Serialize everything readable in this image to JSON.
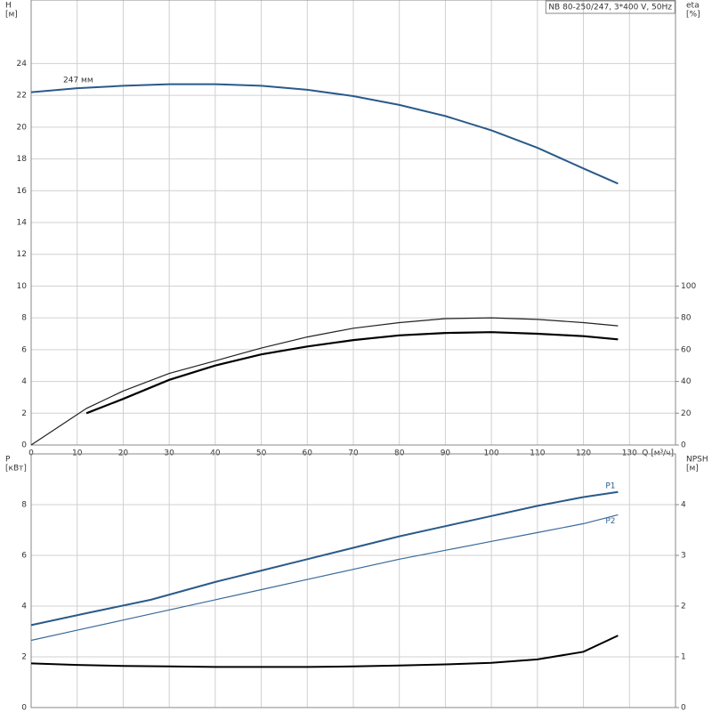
{
  "chart_data": [
    {
      "type": "line",
      "title": "NB 80-250/247, 3*400 V, 50Hz",
      "ylabel": "H",
      "yunit": "[м]",
      "y2label": "eta",
      "y2unit": "[%]",
      "xlabel": "Q [м³/ч]",
      "xlim": [
        0,
        140
      ],
      "xticks": [
        0,
        10,
        20,
        30,
        40,
        50,
        60,
        70,
        80,
        90,
        100,
        110,
        120,
        130
      ],
      "ylim": [
        0,
        28
      ],
      "yticks": [
        0,
        2,
        4,
        6,
        8,
        10,
        12,
        14,
        16,
        18,
        20,
        22,
        24
      ],
      "y2lim": [
        0,
        280
      ],
      "y2ticks": [
        0,
        20,
        40,
        60,
        80,
        100
      ],
      "grid": true,
      "series": [
        {
          "name": "247 мм",
          "color": "#2a5a8a",
          "linewidth": 2,
          "x": [
            0,
            10,
            20,
            30,
            40,
            50,
            60,
            70,
            80,
            90,
            100,
            110,
            120,
            127.5
          ],
          "values": [
            22.2,
            22.45,
            22.6,
            22.7,
            22.7,
            22.6,
            22.35,
            21.95,
            21.4,
            20.7,
            19.8,
            18.7,
            17.4,
            16.45
          ]
        },
        {
          "axis": "y2",
          "color": "#222222",
          "linewidth": 1.2,
          "x": [
            0,
            12,
            20,
            30,
            40,
            50,
            60,
            70,
            80,
            90,
            100,
            110,
            120,
            127.5
          ],
          "values": [
            0,
            23,
            34,
            45,
            53,
            61,
            68,
            73.5,
            77,
            79.5,
            80,
            79,
            77,
            75
          ]
        },
        {
          "axis": "y2",
          "color": "#000000",
          "linewidth": 2.2,
          "x": [
            12,
            20,
            30,
            40,
            50,
            60,
            70,
            80,
            90,
            100,
            110,
            120,
            127.5
          ],
          "values": [
            20,
            29,
            41,
            50,
            57,
            62,
            66,
            69,
            70.5,
            71,
            70,
            68.5,
            66.5
          ]
        }
      ]
    },
    {
      "type": "line",
      "ylabel": "P",
      "yunit": "[кВт]",
      "y2label": "NPSH",
      "y2unit": "[м]",
      "xlim": [
        0,
        140
      ],
      "ylim": [
        0,
        10
      ],
      "yticks": [
        0,
        2,
        4,
        6,
        8
      ],
      "y2lim": [
        0,
        5
      ],
      "y2ticks": [
        0,
        1,
        2,
        3,
        4
      ],
      "grid": true,
      "series": [
        {
          "name": "P1",
          "color": "#2a5a8a",
          "linewidth": 2,
          "x": [
            0,
            12,
            26,
            40,
            50,
            60,
            70,
            80,
            90,
            100,
            110,
            120,
            127.5
          ],
          "values": [
            3.25,
            3.72,
            4.25,
            4.95,
            5.4,
            5.85,
            6.3,
            6.75,
            7.15,
            7.55,
            7.95,
            8.3,
            8.5
          ]
        },
        {
          "name": "P2",
          "color": "#3a6a9a",
          "linewidth": 1.2,
          "x": [
            0,
            10,
            20,
            30,
            40,
            50,
            60,
            70,
            80,
            90,
            100,
            110,
            120,
            127.5
          ],
          "values": [
            2.65,
            3.05,
            3.45,
            3.85,
            4.25,
            4.65,
            5.05,
            5.45,
            5.85,
            6.2,
            6.55,
            6.9,
            7.25,
            7.6
          ]
        },
        {
          "axis": "y2",
          "color": "#000000",
          "linewidth": 2,
          "x": [
            0,
            10,
            20,
            30,
            40,
            50,
            60,
            70,
            80,
            90,
            100,
            110,
            120,
            127.5
          ],
          "values": [
            0.87,
            0.84,
            0.82,
            0.81,
            0.8,
            0.8,
            0.8,
            0.81,
            0.83,
            0.85,
            0.88,
            0.95,
            1.1,
            1.42
          ]
        }
      ]
    }
  ]
}
